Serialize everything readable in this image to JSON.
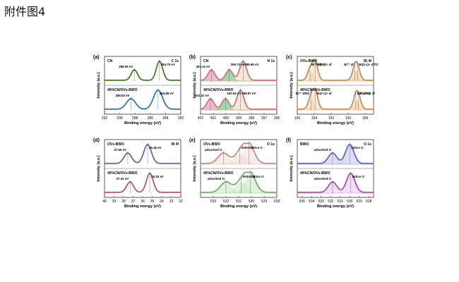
{
  "page": {
    "title": "附件图4"
  },
  "chart_data": [
    {
      "type": "line",
      "panel": "(a)",
      "title": "",
      "xlabel": "Binding energy (eV)",
      "ylabel": "Intensity (a.u.)",
      "xlim": [
        292,
        282
      ],
      "xticks": [
        292,
        290,
        288,
        286,
        284,
        282
      ],
      "series": [
        {
          "name": "CN",
          "element": "C 1s",
          "peaks": [
            {
              "label": "288.09 eV",
              "x": 288.09
            },
            {
              "label": "284.79 eV",
              "x": 284.79
            }
          ]
        },
        {
          "name": "40%CN/OVs-BWO",
          "peaks": [
            {
              "label": "288.53 eV",
              "x": 288.53
            },
            {
              "label": "284.98 eV",
              "x": 284.98
            }
          ]
        }
      ]
    },
    {
      "type": "line",
      "panel": "(b)",
      "title": "",
      "xlabel": "Binding energy (eV)",
      "ylabel": "Intensity (a.u.)",
      "xlim": [
        402,
        396
      ],
      "xticks": [
        402,
        401,
        400,
        399,
        398,
        397,
        396
      ],
      "series": [
        {
          "name": "CN",
          "element": "N 1s",
          "peaks": [
            {
              "label": "401.14 eV",
              "x": 401.14
            },
            {
              "label": "399.74 eV",
              "x": 399.74
            },
            {
              "label": "398.65 eV",
              "x": 398.65
            }
          ]
        },
        {
          "name": "40%CN/OVs-BWO",
          "peaks": [
            {
              "label": "401.22 eV",
              "x": 401.22
            },
            {
              "label": "400.04 eV",
              "x": 400.04
            },
            {
              "label": "398.87 eV",
              "x": 398.87
            }
          ]
        }
      ]
    },
    {
      "type": "line",
      "panel": "(c)",
      "title": "",
      "xlabel": "Binding energy (eV)",
      "ylabel": "Intensity (a.u.)",
      "xlim": [
        166,
        157
      ],
      "xticks": [
        166,
        164,
        162,
        160,
        158
      ],
      "series": [
        {
          "name": "OVs-BWO",
          "element": "Bi 4f",
          "peaks": [
            {
              "label": "Bi³⁺ 4f",
              "x": 159.2
            },
            {
              "label": "Bi³⁺ 4f5/2",
              "x": 164.5
            },
            {
              "label": "Bi(3-x)+ 4f7/2",
              "x": 158.9
            },
            {
              "label": "Bi(3-x)+ 4f",
              "x": 163.9
            }
          ]
        },
        {
          "name": "40%CN/OVs-BWO",
          "peaks": [
            {
              "label": "Bi³⁺ 4f5/2",
              "x": 164.4
            },
            {
              "label": "Bi³⁺ 4f7/2",
              "x": 159.1
            },
            {
              "label": "Bi(3-x)+ 4f",
              "x": 158.8
            },
            {
              "label": "Bi(3-x)+ 4f",
              "x": 163.9
            }
          ]
        }
      ]
    },
    {
      "type": "line",
      "panel": "(d)",
      "title": "",
      "xlabel": "Binding energy (eV)",
      "ylabel": "Intensity (a.u.)",
      "xlim": [
        40,
        32
      ],
      "xticks": [
        40,
        39,
        38,
        37,
        36,
        35,
        34,
        33,
        32
      ],
      "series": [
        {
          "name": "OVs-BWO",
          "element": "W 4f",
          "peaks": [
            {
              "label": "37.56 eV",
              "x": 37.56
            },
            {
              "label": "35.48 eV",
              "x": 35.48
            }
          ]
        },
        {
          "name": "40%CN/OVs-BWO",
          "peaks": [
            {
              "label": "37.32 eV",
              "x": 37.32
            },
            {
              "label": "35.25 eV",
              "x": 35.25
            }
          ]
        }
      ]
    },
    {
      "type": "line",
      "panel": "(e)",
      "title": "",
      "xlabel": "Binding energy (eV)",
      "ylabel": "Intensity (a.u.)",
      "xlim": [
        534,
        528
      ],
      "xticks": [
        533,
        532,
        531,
        530,
        529,
        528
      ],
      "series": [
        {
          "name": "OVs-BWO",
          "element": "O 1s",
          "peaks": [
            {
              "label": "adsorbed O",
              "x": 532.2
            },
            {
              "label": "defect O",
              "x": 530.9
            },
            {
              "label": "lattice O",
              "x": 530.2
            }
          ]
        },
        {
          "name": "40%CN/OVs-BWO",
          "peaks": [
            {
              "label": "adsorbed O",
              "x": 532.0
            },
            {
              "label": "defect O",
              "x": 530.8
            },
            {
              "label": "lattice O",
              "x": 530.1
            }
          ]
        }
      ]
    },
    {
      "type": "line",
      "panel": "(f)",
      "title": "",
      "xlabel": "Binding energy (eV)",
      "ylabel": "Intensity (a.u.)",
      "xlim": [
        535.5,
        527.5
      ],
      "xticks": [
        535,
        534,
        533,
        532,
        531,
        530,
        529,
        528
      ],
      "series": [
        {
          "name": "BWO",
          "element": "O 1s",
          "peaks": [
            {
              "label": "adsorbed O",
              "x": 531.8
            },
            {
              "label": "lattice O",
              "x": 530.0
            }
          ]
        },
        {
          "name": "40%CN/OVs-BWO",
          "peaks": [
            {
              "label": "adsorbed O",
              "x": 531.8
            },
            {
              "label": "lattice O",
              "x": 529.9
            }
          ]
        }
      ]
    }
  ]
}
